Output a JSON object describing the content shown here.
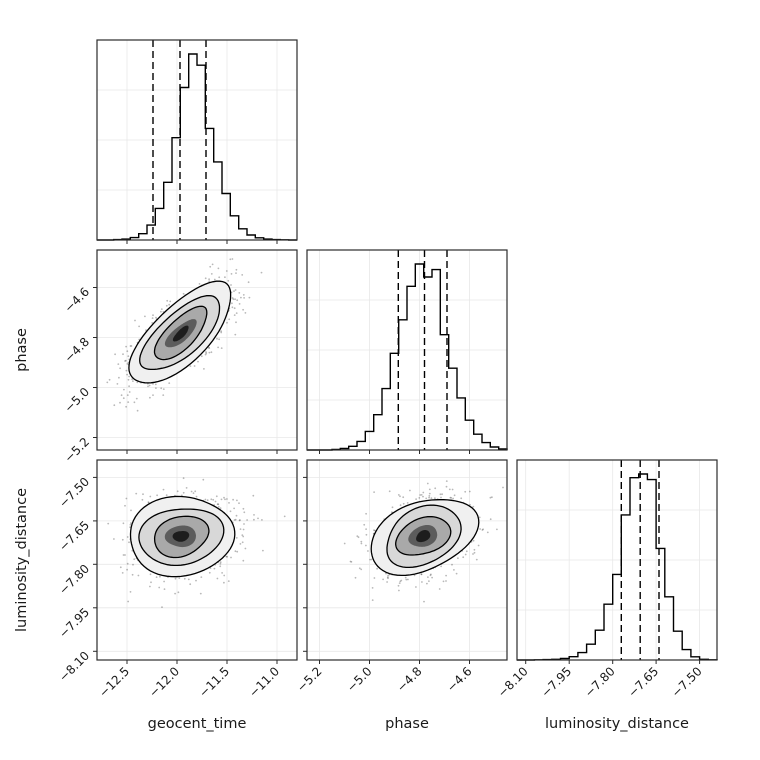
{
  "figure": {
    "kind": "corner posterior plot",
    "x_axis_titles": [
      "geocent_time",
      "phase",
      "luminosity_distance"
    ],
    "y_axis_titles": [
      "phase",
      "luminosity_distance"
    ]
  },
  "chart_data": {
    "type": "corner",
    "title": "",
    "grid": true,
    "parameters": [
      {
        "name": "geocent_time",
        "range": [
          -12.8,
          -10.8
        ],
        "ticks": [
          -12.5,
          -12.0,
          -11.5,
          -11.0
        ],
        "tick_labels": [
          "−12.5",
          "−12.0",
          "−11.5",
          "−11.0"
        ],
        "mean": -11.96,
        "sigma": 0.26,
        "quantiles": [
          -12.24,
          -11.97,
          -11.71
        ],
        "hist": [
          0,
          0,
          0.002,
          0.005,
          0.013,
          0.034,
          0.08,
          0.17,
          0.31,
          0.55,
          0.82,
          1.0,
          0.94,
          0.6,
          0.42,
          0.25,
          0.13,
          0.06,
          0.027,
          0.012,
          0.005,
          0.002,
          0.001,
          0
        ]
      },
      {
        "name": "phase",
        "range": [
          -5.25,
          -4.45
        ],
        "ticks": [
          -5.2,
          -5.0,
          -4.8,
          -4.6
        ],
        "tick_labels": [
          "−5.2",
          "−5.0",
          "−4.8",
          "−4.6"
        ],
        "mean": -4.785,
        "sigma": 0.1,
        "quantiles": [
          -4.885,
          -4.78,
          -4.69
        ],
        "hist": [
          0,
          0,
          0,
          0.003,
          0.008,
          0.02,
          0.046,
          0.1,
          0.19,
          0.33,
          0.52,
          0.7,
          0.88,
          1.0,
          0.93,
          0.97,
          0.62,
          0.44,
          0.28,
          0.16,
          0.085,
          0.04,
          0.016,
          0.006
        ]
      },
      {
        "name": "luminosity_distance",
        "range": [
          -8.13,
          -7.44
        ],
        "ticks": [
          -8.1,
          -7.95,
          -7.8,
          -7.65,
          -7.5
        ],
        "tick_labels": [
          "−8.10",
          "−7.95",
          "−7.80",
          "−7.65",
          "−7.50"
        ],
        "mean": -7.703,
        "sigma": 0.066,
        "quantiles": [
          -7.77,
          -7.705,
          -7.64
        ],
        "hist": [
          0,
          0,
          0.001,
          0.002,
          0.004,
          0.008,
          0.018,
          0.04,
          0.085,
          0.16,
          0.3,
          0.46,
          0.78,
          0.98,
          1.0,
          0.97,
          0.6,
          0.34,
          0.155,
          0.056,
          0.017,
          0.004,
          0.001
        ]
      }
    ],
    "correlations": {
      "geocent_time__phase": 0.74,
      "geocent_time__luminosity_distance": 0.12,
      "phase__luminosity_distance": 0.32
    },
    "contour_levels": [
      {
        "sigma": 2.05,
        "fill": "#f0f0f0",
        "stroke": true
      },
      {
        "sigma": 1.55,
        "fill": "#d8d8d8",
        "stroke": true
      },
      {
        "sigma": 1.05,
        "fill": "#a9a9a9",
        "stroke": true
      },
      {
        "sigma": 0.58,
        "fill": "#5c5c5c",
        "stroke": false
      },
      {
        "sigma": 0.3,
        "fill": "#1d1d1d",
        "stroke": false
      }
    ],
    "scatter_count": 1100,
    "style": {
      "hist_color": "#000000",
      "quantile_color": "#000000",
      "scatter_color": "rgba(0,0,0,0.28)",
      "grid_color": "#e8e8e8",
      "axis_color": "#2b2b2b",
      "background": "#ffffff"
    }
  }
}
